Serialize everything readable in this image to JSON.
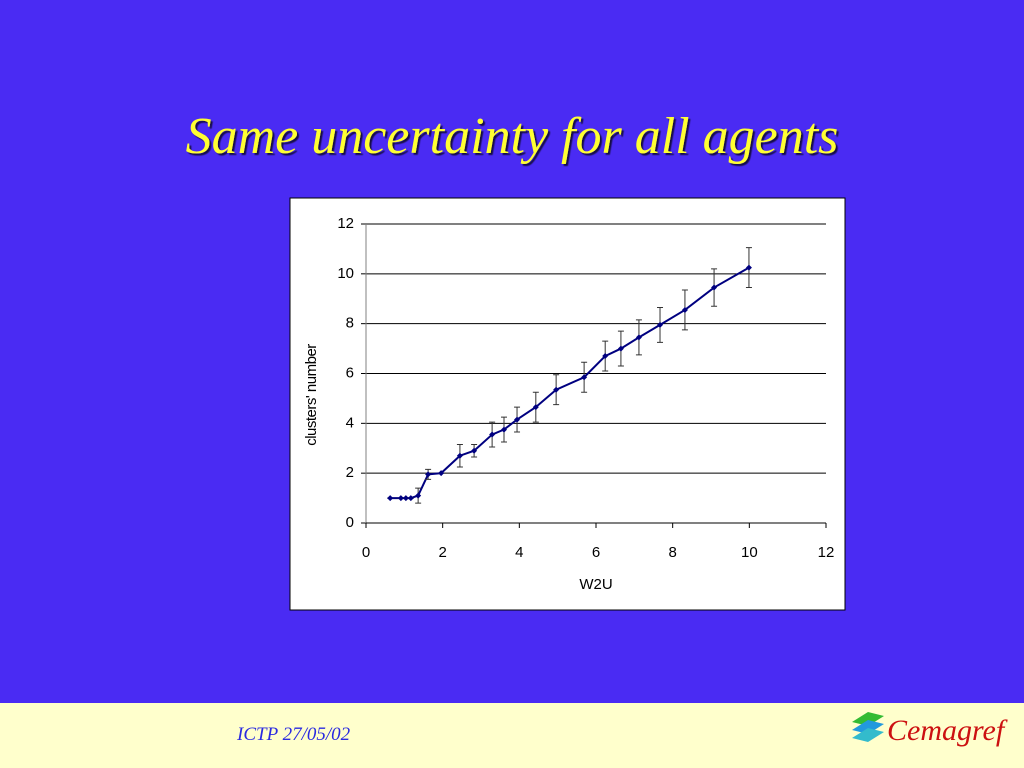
{
  "title": "Same uncertainty for all agents",
  "chart_data": {
    "type": "line",
    "xlabel": "W2U",
    "ylabel": "clusters' number",
    "x": [
      0.63,
      0.91,
      1.04,
      1.17,
      1.36,
      1.62,
      1.96,
      2.45,
      2.82,
      3.29,
      3.6,
      3.94,
      4.43,
      4.96,
      5.69,
      6.24,
      6.65,
      7.12,
      7.67,
      8.32,
      9.08,
      9.99
    ],
    "values": [
      1.0,
      1.0,
      1.0,
      1.0,
      1.1,
      1.95,
      2.0,
      2.7,
      2.9,
      3.55,
      3.75,
      4.15,
      4.65,
      5.35,
      5.85,
      6.7,
      7.0,
      7.45,
      7.95,
      8.55,
      9.45,
      10.25
    ],
    "errors": [
      0,
      0,
      0,
      0,
      0.3,
      0.2,
      0,
      0.45,
      0.25,
      0.5,
      0.5,
      0.5,
      0.6,
      0.6,
      0.6,
      0.6,
      0.7,
      0.7,
      0.7,
      0.8,
      0.75,
      0.8
    ],
    "color": "#000080",
    "xlim": [
      0,
      12
    ],
    "xticks": [
      0,
      2,
      4,
      6,
      8,
      10,
      12
    ],
    "ylim": [
      0,
      12
    ],
    "yticks": [
      0,
      2,
      4,
      6,
      8,
      10,
      12
    ],
    "grid": true
  },
  "footer": {
    "text": "ICTP 27/05/02",
    "logo": "Cemagref"
  }
}
